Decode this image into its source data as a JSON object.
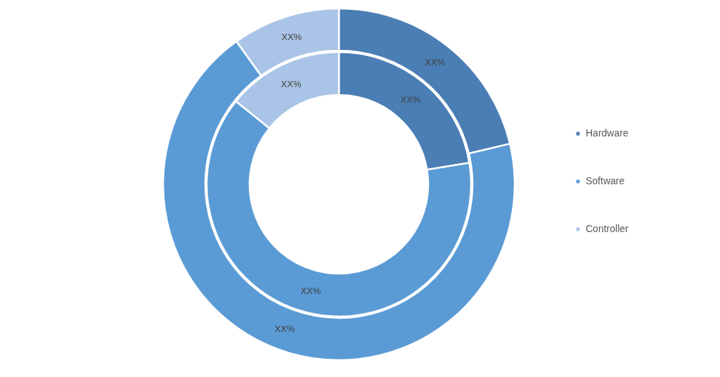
{
  "chart_data": {
    "type": "donut",
    "categories": [
      "Hardware",
      "Software",
      "Controller"
    ],
    "colors": [
      "#4a7eb4",
      "#5b9bd5",
      "#a9c4e6"
    ],
    "series": [
      {
        "values": [
          22.4,
          63.4,
          14.2
        ],
        "value_labels": [
          "XX%",
          "XX%",
          "XX%"
        ]
      },
      {
        "values": [
          21.3,
          68.8,
          9.9
        ],
        "value_labels": [
          "XX%",
          "XX%",
          "XX%"
        ]
      }
    ],
    "legend": "right"
  }
}
